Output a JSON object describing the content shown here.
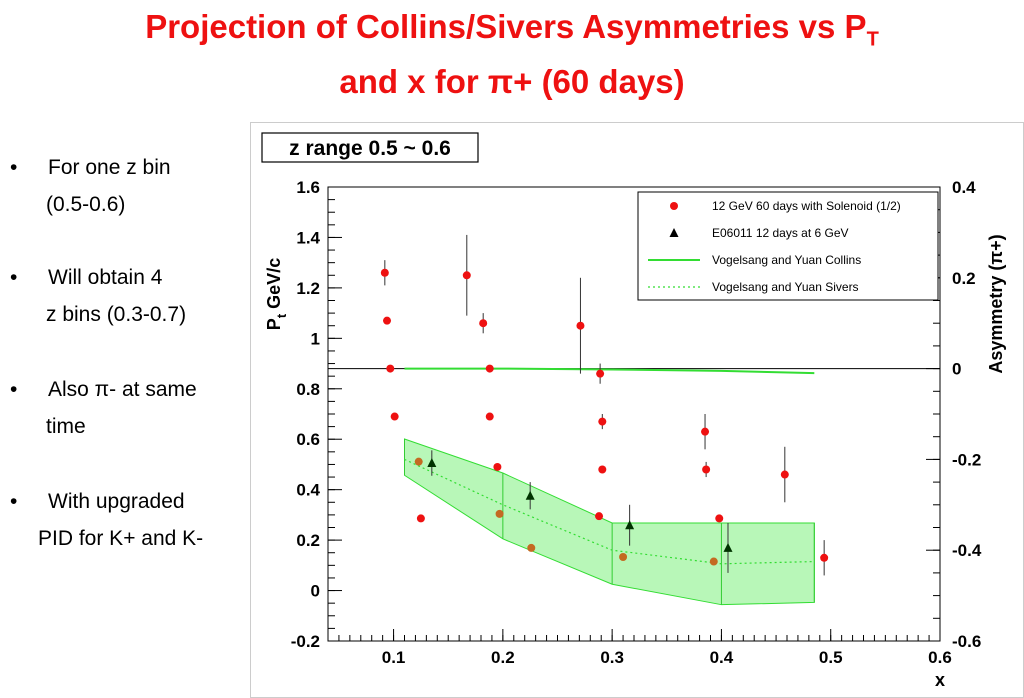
{
  "title": {
    "line1_prefix": "Projection of Collins/Sivers Asymmetries vs P",
    "line1_sub": "T",
    "line2": "and x for π+ (60 days)"
  },
  "bullets": [
    {
      "marker": "•",
      "line1": "For one z bin",
      "line2": "(0.5-0.6)"
    },
    {
      "marker": "•",
      "line1": "Will obtain 4",
      "line2": "z bins (0.3-0.7)"
    },
    {
      "marker": "•",
      "line1": "Also π- at same",
      "line2": "time"
    },
    {
      "marker": "•",
      "line1": "With upgraded",
      "line2": "PID for K+ and K-"
    }
  ],
  "chart_data": {
    "type": "scatter",
    "panel_label": "z range 0.5 ~ 0.6",
    "xlabel": "x",
    "ylabel_left_main": "P",
    "ylabel_left_sub": "t",
    "ylabel_left_rest": " GeV/c",
    "ylabel_right": "Asymmetry (π+)",
    "xlim": [
      0.04,
      0.6
    ],
    "ylim_left": [
      -0.2,
      1.6
    ],
    "ylim_right": [
      -0.6,
      0.4
    ],
    "grid": false,
    "legend_position": "top-right",
    "x_ticks": [
      0.1,
      0.2,
      0.3,
      0.4,
      0.5,
      0.6
    ],
    "x_tick_labels": [
      "0.1",
      "0.2",
      "0.3",
      "0.4",
      "0.5",
      "0.6"
    ],
    "y_left_ticks": [
      -0.2,
      0,
      0.2,
      0.4,
      0.6,
      0.8,
      1,
      1.2,
      1.4,
      1.6
    ],
    "y_left_tick_labels": [
      "-0.2",
      "0",
      "0.2",
      "0.4",
      "0.6",
      "0.8",
      "1",
      "1.2",
      "1.4",
      "1.6"
    ],
    "y_right_ticks": [
      -0.6,
      -0.4,
      -0.2,
      0,
      0.2,
      0.4
    ],
    "y_right_tick_labels": [
      "-0.6",
      "-0.4",
      "-0.2",
      "0",
      "0.2",
      "0.4"
    ],
    "legend": [
      {
        "label": "12 GeV 60 days with Solenoid (1/2)",
        "marker": "circle",
        "color": "#ee1111"
      },
      {
        "label": "E06011 12 days at 6 GeV",
        "marker": "triangle",
        "color": "#000000"
      },
      {
        "label": "Vogelsang and Yuan Collins",
        "marker": "line",
        "color": "#33dd33"
      },
      {
        "label": "Vogelsang and Yuan Sivers",
        "marker": "dotted",
        "color": "#33dd33"
      }
    ],
    "series": [
      {
        "name": "12 GeV 60 days with Solenoid (1/2)",
        "axis": "left",
        "color": "#ee1111",
        "points": [
          {
            "x": 0.092,
            "y": 1.26,
            "err": 0.05
          },
          {
            "x": 0.094,
            "y": 1.07
          },
          {
            "x": 0.097,
            "y": 0.88
          },
          {
            "x": 0.101,
            "y": 0.69
          },
          {
            "x": 0.167,
            "y": 1.25,
            "err": 0.16
          },
          {
            "x": 0.182,
            "y": 1.06,
            "err": 0.04
          },
          {
            "x": 0.188,
            "y": 0.88
          },
          {
            "x": 0.188,
            "y": 0.69
          },
          {
            "x": 0.195,
            "y": 0.49
          },
          {
            "x": 0.271,
            "y": 1.05,
            "err": 0.19
          },
          {
            "x": 0.289,
            "y": 0.86,
            "err": 0.04
          },
          {
            "x": 0.291,
            "y": 0.67,
            "err": 0.03
          },
          {
            "x": 0.291,
            "y": 0.48
          },
          {
            "x": 0.385,
            "y": 0.63,
            "err": 0.07
          },
          {
            "x": 0.386,
            "y": 0.48,
            "err": 0.03
          },
          {
            "x": 0.458,
            "y": 0.46,
            "err": 0.11
          },
          {
            "x": 0.494,
            "y": 0.13,
            "err": 0.07
          }
        ]
      },
      {
        "name": "12 GeV 60 days with Solenoid (1/2)",
        "axis": "right",
        "color": "#ee1111",
        "points": [
          {
            "x": 0.125,
            "y": -0.33
          },
          {
            "x": 0.288,
            "y": -0.325
          },
          {
            "x": 0.398,
            "y": -0.33
          }
        ]
      },
      {
        "name": "12 GeV 60 days with Solenoid (1/2)",
        "axis": "right",
        "color": "#c46a22",
        "points": [
          {
            "x": 0.123,
            "y": -0.205
          },
          {
            "x": 0.197,
            "y": -0.32
          },
          {
            "x": 0.226,
            "y": -0.395
          },
          {
            "x": 0.31,
            "y": -0.415
          },
          {
            "x": 0.393,
            "y": -0.425
          }
        ]
      },
      {
        "name": "E06011 12 days at 6 GeV",
        "axis": "right",
        "color": "#000000",
        "points": [
          {
            "x": 0.135,
            "y": -0.208,
            "err": 0.028
          },
          {
            "x": 0.225,
            "y": -0.28,
            "err": 0.03
          },
          {
            "x": 0.316,
            "y": -0.345,
            "err": 0.045
          },
          {
            "x": 0.406,
            "y": -0.395,
            "err": 0.055
          }
        ]
      },
      {
        "name": "Vogelsang and Yuan Collins",
        "axis": "right",
        "color": "#33dd33",
        "line": [
          [
            0.11,
            0.0
          ],
          [
            0.2,
            0.0
          ],
          [
            0.3,
            -0.002
          ],
          [
            0.4,
            -0.005
          ],
          [
            0.485,
            -0.01
          ]
        ]
      },
      {
        "name": "Vogelsang and Yuan Sivers",
        "axis": "right",
        "color": "#33dd33",
        "line": [
          [
            0.11,
            -0.2
          ],
          [
            0.2,
            -0.3
          ],
          [
            0.3,
            -0.4
          ],
          [
            0.4,
            -0.43
          ],
          [
            0.485,
            -0.425
          ]
        ],
        "band_upper": [
          [
            0.11,
            -0.155
          ],
          [
            0.2,
            -0.23
          ],
          [
            0.3,
            -0.34
          ],
          [
            0.4,
            -0.34
          ],
          [
            0.485,
            -0.34
          ]
        ],
        "band_lower": [
          [
            0.11,
            -0.235
          ],
          [
            0.2,
            -0.375
          ],
          [
            0.3,
            -0.475
          ],
          [
            0.4,
            -0.52
          ],
          [
            0.485,
            -0.515
          ]
        ]
      }
    ]
  }
}
